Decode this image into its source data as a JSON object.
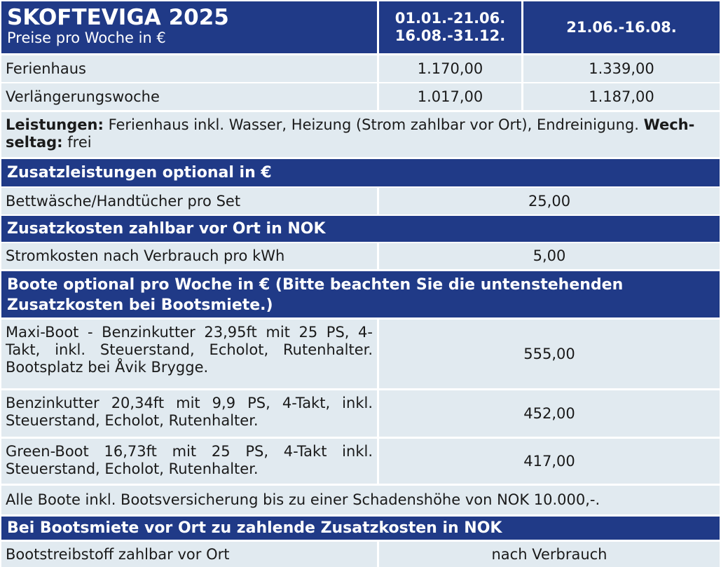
{
  "header": {
    "title": "SKOFTEVIGA 2025",
    "subtitle": "Preise pro Woche in €",
    "col1_line1": "01.01.-21.06.",
    "col1_line2": "16.08.-31.12.",
    "col2": "21.06.-16.08."
  },
  "prices": [
    {
      "label": "Ferienhaus",
      "v1": "1.170,00",
      "v2": "1.339,00"
    },
    {
      "label": "Verlängerungswoche",
      "v1": "1.017,00",
      "v2": "1.187,00"
    }
  ],
  "services": {
    "label1": "Leistungen:",
    "text1": " Ferienhaus inkl. Wasser, Heizung (Strom zahlbar vor Ort), Endreinigung. ",
    "label2": "Wech-seltag:",
    "text2": " frei"
  },
  "extras": {
    "heading": "Zusatzleistungen optional in €",
    "label": "Bettwäsche/Handtücher pro Set",
    "value": "25,00"
  },
  "local_costs": {
    "heading": "Zusatzkosten zahlbar vor Ort in NOK",
    "label": "Stromkosten nach Verbrauch pro kWh",
    "value": "5,00"
  },
  "boats": {
    "heading": "Boote optional pro Woche in € (Bitte beachten Sie die untenstehenden Zusatzkosten bei Bootsmiete.)",
    "items": [
      {
        "label": "Maxi-Boot - Benzinkutter 23,95ft mit 25 PS, 4-Takt, inkl. Steuerstand, Echolot, Rutenhalter. Bootsplatz bei Åvik Brygge.",
        "value": "555,00"
      },
      {
        "label": "Benzinkutter 20,34ft mit 9,9 PS, 4-Takt, inkl. Steuerstand, Echolot, Rutenhalter.",
        "value": "452,00"
      },
      {
        "label": "Green-Boot 16,73ft mit 25 PS, 4-Takt inkl. Steuerstand, Echolot, Rutenhalter.",
        "value": "417,00"
      }
    ],
    "insurance_note": "Alle Boote inkl. Bootsversicherung bis zu einer Schadenshöhe von NOK 10.000,-."
  },
  "boat_costs": {
    "heading": "Bei Bootsmiete vor Ort zu zahlende Zusatzkosten in NOK",
    "label": "Bootstreibstoff zahlbar vor Ort",
    "value": "nach Verbrauch"
  }
}
